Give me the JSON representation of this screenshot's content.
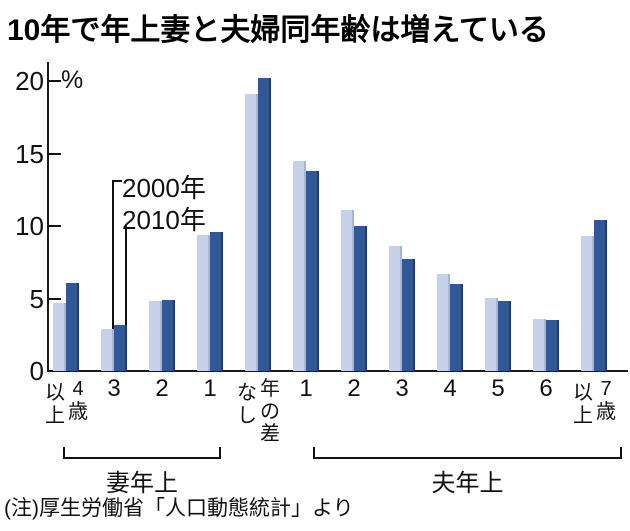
{
  "note": "(注)厚生労働省「人口動態統計」より",
  "chart_data": {
    "type": "bar",
    "title": "10年で年上妻と夫婦同年齢は増えている",
    "unit": "%",
    "xlabel": "",
    "ylabel": "%",
    "ylim": [
      0,
      20
    ],
    "yticks": [
      0,
      5,
      10,
      15,
      20
    ],
    "grid": false,
    "legend_position": "annotation with leader lines pointing to bars of category 妻3歳年上",
    "categories": [
      {
        "label": "4歳以上",
        "vertical_columns_rtl": [
          "4歳",
          "以上"
        ]
      },
      {
        "label": "3"
      },
      {
        "label": "2"
      },
      {
        "label": "1"
      },
      {
        "label": "年の差なし",
        "vertical_columns_rtl": [
          "年の差",
          "なし"
        ]
      },
      {
        "label": "1"
      },
      {
        "label": "2"
      },
      {
        "label": "3"
      },
      {
        "label": "4"
      },
      {
        "label": "5"
      },
      {
        "label": "6"
      },
      {
        "label": "7歳以上",
        "vertical_columns_rtl": [
          "7歳",
          "以上"
        ]
      }
    ],
    "series": [
      {
        "name": "2000年",
        "color": "#c5d0e9",
        "edge_color": "#a6b6d8",
        "values": [
          4.7,
          2.9,
          4.8,
          9.4,
          19.1,
          14.5,
          11.1,
          8.6,
          6.7,
          5.0,
          3.6,
          9.3
        ]
      },
      {
        "name": "2010年",
        "color": "#30589b",
        "edge_color": "#1e3e72",
        "values": [
          6.1,
          3.2,
          4.9,
          9.6,
          20.2,
          13.8,
          10.0,
          7.7,
          6.0,
          4.8,
          3.5,
          10.4
        ]
      }
    ],
    "category_axis_groups": [
      {
        "label": "妻年上",
        "from_category_index": 0,
        "to_category_index": 3
      },
      {
        "label": "夫年上",
        "from_category_index": 5,
        "to_category_index": 11
      }
    ]
  }
}
